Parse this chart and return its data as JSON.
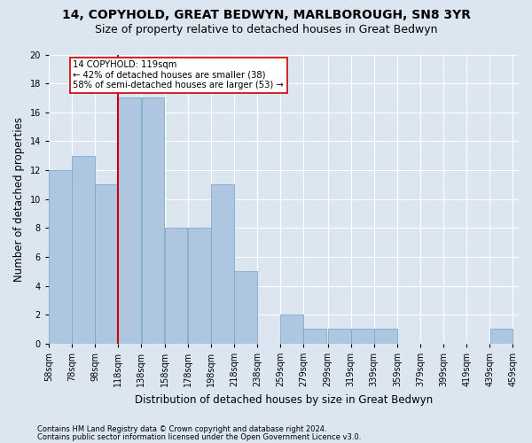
{
  "title1": "14, COPYHOLD, GREAT BEDWYN, MARLBOROUGH, SN8 3YR",
  "title2": "Size of property relative to detached houses in Great Bedwyn",
  "xlabel": "Distribution of detached houses by size in Great Bedwyn",
  "ylabel": "Number of detached properties",
  "footer1": "Contains HM Land Registry data © Crown copyright and database right 2024.",
  "footer2": "Contains public sector information licensed under the Open Government Licence v3.0.",
  "bin_left_edges": [
    58,
    78,
    98,
    118,
    138,
    158,
    178,
    198,
    218,
    238,
    258,
    278,
    299,
    319,
    339,
    359,
    379,
    399,
    419,
    439
  ],
  "bin_width": 20,
  "bar_heights": [
    12,
    13,
    11,
    17,
    17,
    8,
    8,
    11,
    5,
    0,
    2,
    1,
    1,
    1,
    1,
    0,
    0,
    0,
    0,
    1
  ],
  "xtick_labels": [
    "58sqm",
    "78sqm",
    "98sqm",
    "118sqm",
    "138sqm",
    "158sqm",
    "178sqm",
    "198sqm",
    "218sqm",
    "238sqm",
    "259sqm",
    "279sqm",
    "299sqm",
    "319sqm",
    "339sqm",
    "359sqm",
    "379sqm",
    "399sqm",
    "419sqm",
    "439sqm",
    "459sqm"
  ],
  "bar_color": "#aec6e0",
  "bar_edge_color": "#7aaac8",
  "vline_x": 118,
  "vline_color": "#cc0000",
  "annotation_text": "14 COPYHOLD: 119sqm\n← 42% of detached houses are smaller (38)\n58% of semi-detached houses are larger (53) →",
  "annotation_box_color": "#ffffff",
  "annotation_border_color": "#cc0000",
  "ylim": [
    0,
    20
  ],
  "yticks": [
    0,
    2,
    4,
    6,
    8,
    10,
    12,
    14,
    16,
    18,
    20
  ],
  "background_color": "#dce6f0",
  "grid_color": "#ffffff",
  "title1_fontsize": 10,
  "title2_fontsize": 9,
  "xlabel_fontsize": 8.5,
  "ylabel_fontsize": 8.5,
  "tick_fontsize": 7,
  "footer_fontsize": 6
}
